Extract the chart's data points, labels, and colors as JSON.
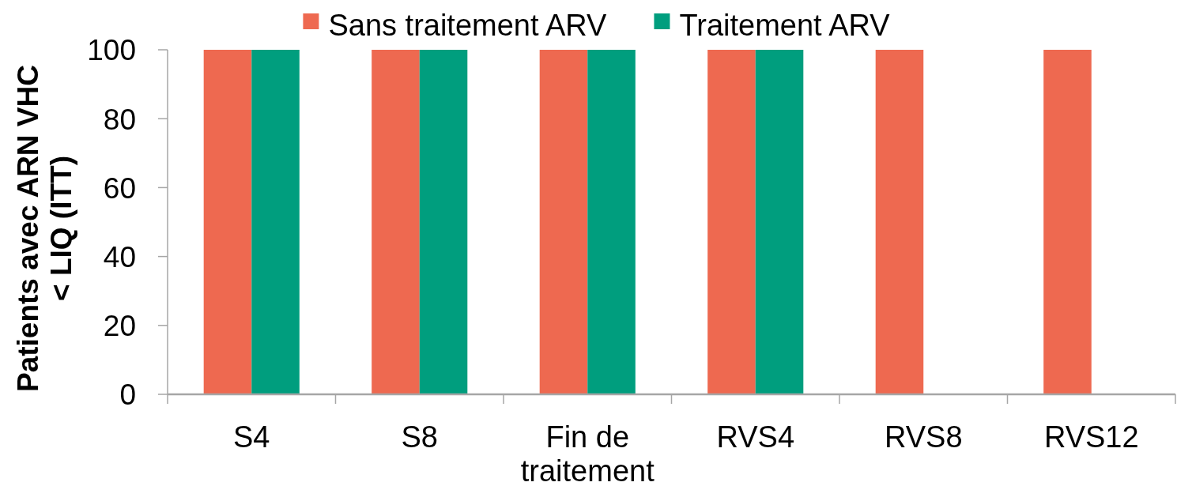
{
  "chart_data": {
    "type": "bar",
    "ylabel": "Patients avec ARN VHC < LIQ (ITT)",
    "categories": [
      "S4",
      "S8",
      "Fin de traitement",
      "RVS4",
      "RVS8",
      "RVS12"
    ],
    "series": [
      {
        "name": "Sans traitement ARV",
        "color": "#ee6950",
        "values": [
          100,
          100,
          100,
          100,
          100,
          100
        ]
      },
      {
        "name": "Traitement ARV",
        "color": "#009e7e",
        "values": [
          100,
          100,
          100,
          100,
          null,
          null
        ]
      }
    ],
    "ylim": [
      0,
      100
    ],
    "yticks": [
      0,
      20,
      40,
      60,
      80,
      100
    ],
    "grid": false,
    "legend": "top"
  }
}
